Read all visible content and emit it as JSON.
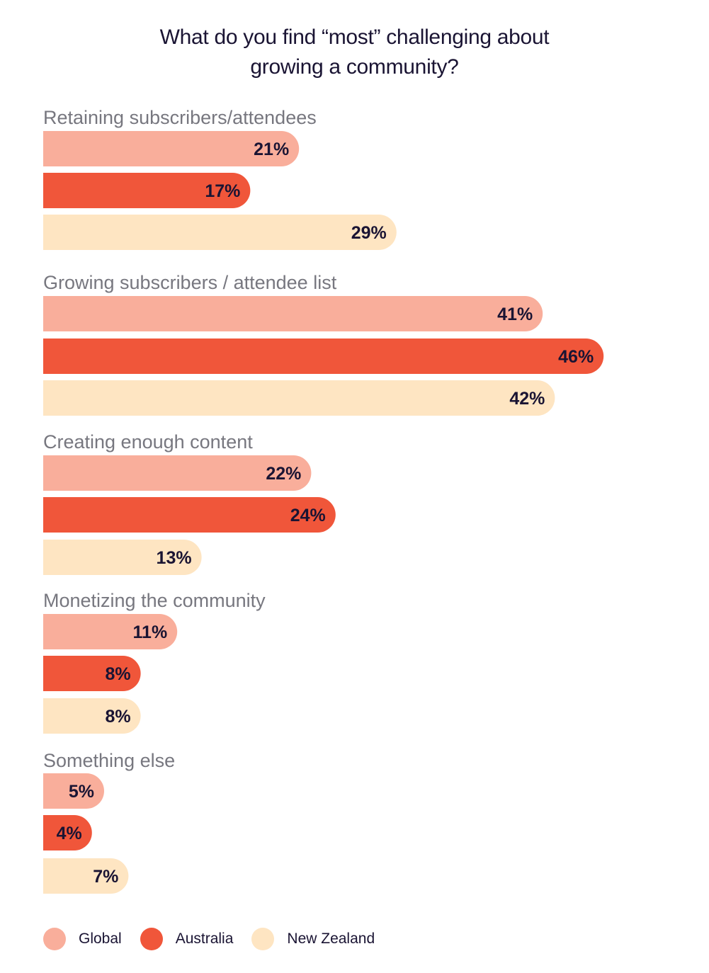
{
  "chart_data": {
    "type": "bar",
    "orientation": "horizontal",
    "title_lines": [
      "What do you find “most” challenging about",
      "growing a community?"
    ],
    "categories": [
      "Retaining subscribers/attendees",
      "Growing subscribers / attendee list",
      "Creating enough content",
      "Monetizing the community",
      "Something else"
    ],
    "series": [
      {
        "name": "Global",
        "color": "#f9ae9b",
        "values": [
          21,
          41,
          22,
          11,
          5
        ],
        "labels": [
          "21%",
          "41%",
          "22%",
          "11%",
          "5%"
        ]
      },
      {
        "name": "Australia",
        "color": "#f0563a",
        "values": [
          17,
          46,
          24,
          8,
          4
        ],
        "labels": [
          "17%",
          "46%",
          "24%",
          "8%",
          "4%"
        ]
      },
      {
        "name": "New Zealand",
        "color": "#fee5c2",
        "values": [
          29,
          42,
          13,
          8,
          7
        ],
        "labels": [
          "29%",
          "42%",
          "13%",
          "8%",
          "7%"
        ]
      }
    ],
    "value_suffix": "%",
    "legend_position": "bottom-left",
    "label_color": "#1a1433",
    "category_label_color": "#77777f"
  }
}
